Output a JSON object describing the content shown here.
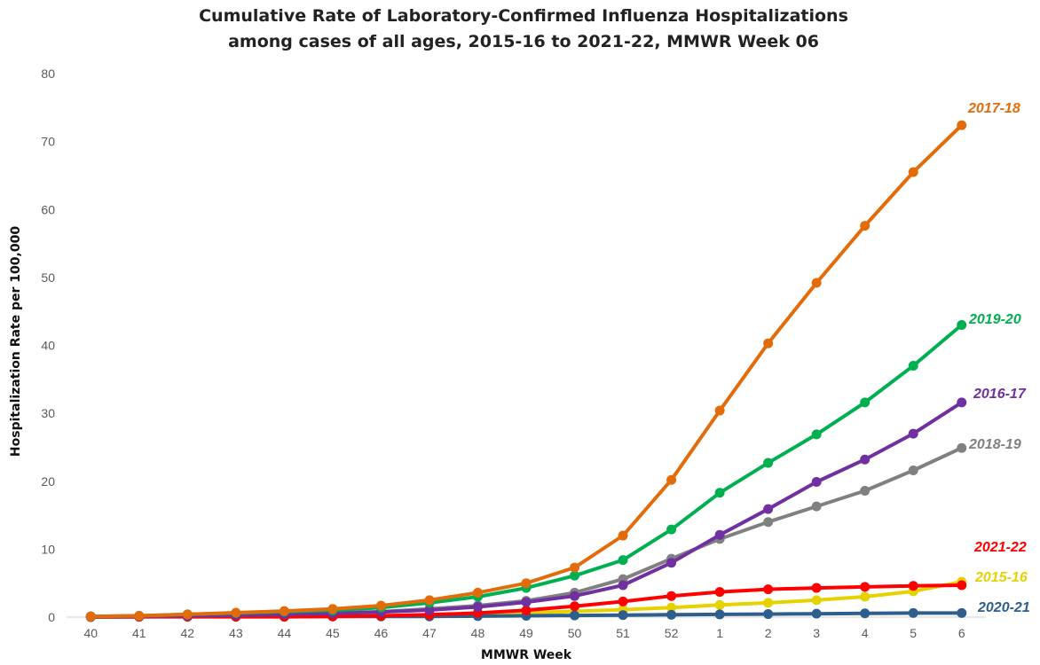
{
  "chart_data": {
    "type": "line",
    "title": [
      "Cumulative Rate of Laboratory-Confirmed Influenza Hospitalizations",
      "among cases of all ages, 2015-16 to 2021-22, MMWR  Week 06"
    ],
    "xlabel": "MMWR Week",
    "ylabel": "Hospitalization Rate per 100,000",
    "ylim": [
      0,
      80
    ],
    "yticks": [
      0,
      10,
      20,
      30,
      40,
      50,
      60,
      70,
      80
    ],
    "grid": false,
    "legend": "inline labels at series ends",
    "categories": [
      "40",
      "41",
      "42",
      "43",
      "44",
      "45",
      "46",
      "47",
      "48",
      "49",
      "50",
      "51",
      "52",
      "1",
      "2",
      "3",
      "4",
      "5",
      "6"
    ],
    "series": [
      {
        "name": "2015-16",
        "color": "#E6D200",
        "values": [
          0.1,
          0.1,
          0.1,
          0.1,
          0.1,
          0.15,
          0.2,
          0.3,
          0.45,
          0.65,
          0.85,
          1.1,
          1.4,
          1.8,
          2.1,
          2.5,
          3.0,
          3.8,
          5.2
        ]
      },
      {
        "name": "2020-21",
        "color": "#2E5E8C",
        "values": [
          0.0,
          0.05,
          0.1,
          0.1,
          0.1,
          0.1,
          0.1,
          0.1,
          0.15,
          0.2,
          0.25,
          0.3,
          0.35,
          0.4,
          0.45,
          0.5,
          0.55,
          0.6,
          0.6
        ]
      },
      {
        "name": "2021-22",
        "color": "#FF0000",
        "values": [
          0.05,
          0.05,
          0.05,
          0.05,
          0.05,
          0.1,
          0.2,
          0.35,
          0.6,
          1.0,
          1.6,
          2.3,
          3.1,
          3.7,
          4.1,
          4.3,
          4.45,
          4.6,
          4.7
        ]
      },
      {
        "name": "2018-19",
        "color": "#808080",
        "values": [
          0.1,
          0.15,
          0.2,
          0.3,
          0.45,
          0.6,
          0.8,
          1.2,
          1.7,
          2.4,
          3.6,
          5.6,
          8.6,
          11.5,
          14.0,
          16.3,
          18.6,
          21.6,
          24.9
        ]
      },
      {
        "name": "2016-17",
        "color": "#7030A0",
        "values": [
          0.1,
          0.15,
          0.2,
          0.3,
          0.4,
          0.55,
          0.75,
          1.05,
          1.5,
          2.2,
          3.1,
          4.7,
          8.0,
          12.1,
          15.9,
          19.9,
          23.2,
          27.0,
          31.6
        ]
      },
      {
        "name": "2019-20",
        "color": "#00B050",
        "values": [
          0.1,
          0.2,
          0.4,
          0.6,
          0.8,
          1.0,
          1.4,
          2.1,
          3.0,
          4.3,
          6.1,
          8.4,
          12.9,
          18.3,
          22.7,
          26.9,
          31.6,
          37.0,
          43.0
        ]
      },
      {
        "name": "2017-18",
        "color": "#E36C0A",
        "values": [
          0.1,
          0.2,
          0.4,
          0.65,
          0.9,
          1.2,
          1.7,
          2.5,
          3.6,
          5.0,
          7.3,
          12.0,
          20.2,
          30.4,
          40.3,
          49.2,
          57.6,
          65.5,
          72.4
        ]
      }
    ]
  }
}
